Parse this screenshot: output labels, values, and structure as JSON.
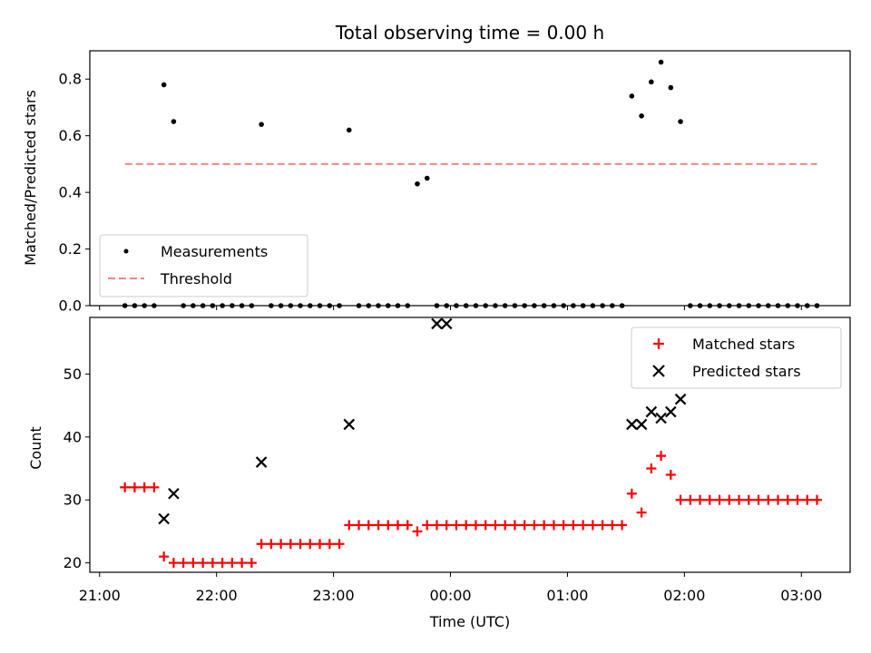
{
  "colors": {
    "matched": "#ff0000",
    "predicted": "#000000",
    "threshold": "#ff8080",
    "measurement": "#000000"
  },
  "chart_data": [
    {
      "type": "scatter",
      "title": "Total observing time = 0.00 h",
      "ylabel": "Matched/Predicted stars",
      "xlabel": "",
      "x_unit": "time (UTC)",
      "xlim": [
        "20:55",
        "03:25"
      ],
      "ylim": [
        0.0,
        0.9
      ],
      "y_ticks": [
        "0.0",
        "0.2",
        "0.4",
        "0.6",
        "0.8"
      ],
      "legend_position": "lower-left",
      "series": [
        {
          "name": "Measurements",
          "marker": "dot",
          "x": [
            "21:13",
            "21:18",
            "21:23",
            "21:28",
            "21:33",
            "21:38",
            "21:43",
            "21:48",
            "21:53",
            "21:58",
            "22:03",
            "22:08",
            "22:13",
            "22:18",
            "22:23",
            "22:28",
            "22:33",
            "22:38",
            "22:43",
            "22:48",
            "22:53",
            "22:58",
            "23:03",
            "23:08",
            "23:13",
            "23:18",
            "23:23",
            "23:28",
            "23:33",
            "23:38",
            "23:43",
            "23:48",
            "23:53",
            "23:58",
            "00:03",
            "00:08",
            "00:13",
            "00:18",
            "00:23",
            "00:28",
            "00:33",
            "00:38",
            "00:43",
            "00:48",
            "00:53",
            "00:58",
            "01:03",
            "01:08",
            "01:13",
            "01:18",
            "01:23",
            "01:28",
            "01:33",
            "01:38",
            "01:43",
            "01:48",
            "01:53",
            "01:58",
            "02:03",
            "02:08",
            "02:13",
            "02:18",
            "02:23",
            "02:28",
            "02:33",
            "02:38",
            "02:43",
            "02:48",
            "02:53",
            "02:58",
            "03:03",
            "03:08"
          ],
          "y": [
            0,
            0,
            0,
            0,
            0.78,
            0.65,
            0,
            0,
            0,
            0,
            0,
            0,
            0,
            0,
            0.64,
            0,
            0,
            0,
            0,
            0,
            0,
            0,
            0,
            0.62,
            0,
            0,
            0,
            0,
            0,
            0,
            0.43,
            0.45,
            0,
            0,
            0,
            0,
            0,
            0,
            0,
            0,
            0,
            0,
            0,
            0,
            0,
            0,
            0,
            0,
            0,
            0,
            0,
            0,
            0.74,
            0.67,
            0.79,
            0.86,
            0.77,
            0.65,
            0,
            0,
            0,
            0,
            0,
            0,
            0,
            0,
            0,
            0,
            0,
            0,
            0,
            0
          ]
        },
        {
          "name": "Threshold",
          "style": "dashed",
          "x": [
            "21:13",
            "03:08"
          ],
          "y": [
            0.5,
            0.5
          ]
        }
      ]
    },
    {
      "type": "scatter",
      "xlabel": "Time (UTC)",
      "ylabel": "Count",
      "xlim": [
        "20:55",
        "03:25"
      ],
      "ylim": [
        18.5,
        59
      ],
      "y_ticks": [
        "20",
        "30",
        "40",
        "50"
      ],
      "x_ticks": [
        "21:00",
        "22:00",
        "23:00",
        "00:00",
        "01:00",
        "02:00",
        "03:00"
      ],
      "legend_position": "top-right",
      "series": [
        {
          "name": "Matched stars",
          "marker": "plus",
          "x": [
            "21:13",
            "21:18",
            "21:23",
            "21:28",
            "21:33",
            "21:38",
            "21:43",
            "21:48",
            "21:53",
            "21:58",
            "22:03",
            "22:08",
            "22:13",
            "22:18",
            "22:23",
            "22:28",
            "22:33",
            "22:38",
            "22:43",
            "22:48",
            "22:53",
            "22:58",
            "23:03",
            "23:08",
            "23:13",
            "23:18",
            "23:23",
            "23:28",
            "23:33",
            "23:38",
            "23:43",
            "23:48",
            "23:53",
            "23:58",
            "00:03",
            "00:08",
            "00:13",
            "00:18",
            "00:23",
            "00:28",
            "00:33",
            "00:38",
            "00:43",
            "00:48",
            "00:53",
            "00:58",
            "01:03",
            "01:08",
            "01:13",
            "01:18",
            "01:23",
            "01:28",
            "01:33",
            "01:38",
            "01:43",
            "01:48",
            "01:53",
            "01:58",
            "02:03",
            "02:08",
            "02:13",
            "02:18",
            "02:23",
            "02:28",
            "02:33",
            "02:38",
            "02:43",
            "02:48",
            "02:53",
            "02:58",
            "03:03",
            "03:08"
          ],
          "y": [
            32,
            32,
            32,
            32,
            21,
            20,
            20,
            20,
            20,
            20,
            20,
            20,
            20,
            20,
            23,
            23,
            23,
            23,
            23,
            23,
            23,
            23,
            23,
            26,
            26,
            26,
            26,
            26,
            26,
            26,
            25,
            26,
            26,
            26,
            26,
            26,
            26,
            26,
            26,
            26,
            26,
            26,
            26,
            26,
            26,
            26,
            26,
            26,
            26,
            26,
            26,
            26,
            31,
            28,
            35,
            37,
            34,
            30,
            30,
            30,
            30,
            30,
            30,
            30,
            30,
            30,
            30,
            30,
            30,
            30,
            30,
            30
          ]
        },
        {
          "name": "Predicted stars",
          "marker": "x",
          "x": [
            "21:33",
            "21:38",
            "22:23",
            "23:08",
            "23:53",
            "23:58",
            "01:33",
            "01:38",
            "01:43",
            "01:48",
            "01:53",
            "01:58"
          ],
          "y": [
            27,
            31,
            36,
            42,
            58,
            58,
            42,
            42,
            44,
            43,
            44,
            46
          ]
        }
      ]
    }
  ]
}
